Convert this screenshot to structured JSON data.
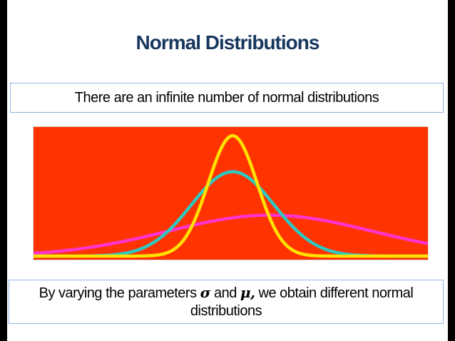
{
  "slide": {
    "title": "Normal Distributions",
    "statement": "There are an infinite number of normal distributions",
    "caption_prefix": "By varying the parameters ",
    "caption_sigma": "σ",
    "caption_mid": " and ",
    "caption_mu": "μ,",
    "caption_suffix": " we obtain different normal distributions"
  },
  "chart_data": {
    "type": "line",
    "title": "",
    "xlabel": "",
    "ylabel": "",
    "background": "#FF3300",
    "x_domain": [
      0,
      1
    ],
    "ylim": [
      0,
      1
    ],
    "grid": false,
    "legend": false,
    "series": [
      {
        "name": "wide-magenta",
        "color": "#FF33CC",
        "mu": 0.6,
        "sigma": 0.26,
        "peak": 0.33
      },
      {
        "name": "medium-teal",
        "color": "#2FC7C0",
        "mu": 0.505,
        "sigma": 0.105,
        "peak": 0.68
      },
      {
        "name": "narrow-yellow",
        "color": "#FFE200",
        "mu": 0.505,
        "sigma": 0.062,
        "peak": 0.97
      }
    ]
  }
}
